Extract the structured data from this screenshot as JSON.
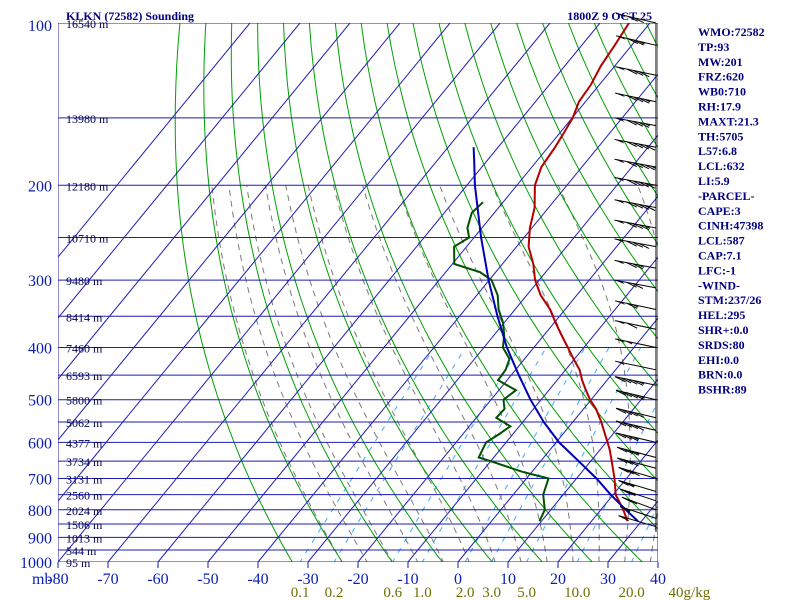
{
  "chart_data": {
    "type": "line",
    "title": "KLKN (72582) Sounding",
    "subtitle": "1800Z  9 OCT 25",
    "xlabel": "",
    "ylabel": "mb",
    "x_axis": {
      "unit_label": "mb",
      "ticks": [
        "-80",
        "-70",
        "-60",
        "-50",
        "-40",
        "-30",
        "-20",
        "-10",
        "0",
        "10",
        "20",
        "30",
        "40"
      ],
      "xlim": [
        -80,
        40
      ]
    },
    "y_axis": {
      "scale": "log",
      "ticks": [
        "100",
        "200",
        "300",
        "400",
        "500",
        "600",
        "700",
        "800",
        "900",
        "1000"
      ],
      "ylim": [
        1000,
        100
      ]
    },
    "mixing_ratio_labels": [
      "0.1",
      "0.2",
      "0.6",
      "1.0",
      "2.0",
      "3.0",
      "5.0",
      "10.0",
      "20.0",
      "40g/kg"
    ],
    "height_labels": [
      {
        "p": 100,
        "label": "16540 m"
      },
      {
        "p": 150,
        "label": "13980 m"
      },
      {
        "p": 200,
        "label": "12180 m"
      },
      {
        "p": 250,
        "label": "10710 m"
      },
      {
        "p": 300,
        "label": "9480 m"
      },
      {
        "p": 350,
        "label": "8414 m"
      },
      {
        "p": 400,
        "label": "7460 m"
      },
      {
        "p": 450,
        "label": "6593 m"
      },
      {
        "p": 500,
        "label": "5800 m"
      },
      {
        "p": 550,
        "label": "5062 m"
      },
      {
        "p": 600,
        "label": "4377 m"
      },
      {
        "p": 650,
        "label": "3734 m"
      },
      {
        "p": 700,
        "label": "3131 m"
      },
      {
        "p": 750,
        "label": "2560 m"
      },
      {
        "p": 800,
        "label": "2024 m"
      },
      {
        "p": 850,
        "label": "1506 m"
      },
      {
        "p": 900,
        "label": "1013 m"
      },
      {
        "p": 950,
        "label": "544 m"
      },
      {
        "p": 1000,
        "label": "95 m"
      }
    ],
    "grid": true,
    "colors": {
      "isobar": "#1e1eb4",
      "isotherm": "#1e1eb4",
      "dry_adiabat": "#00a000",
      "moist_adiabat": "#7a7a7a",
      "mixing_ratio": "#3caaff",
      "temperature": "#b40000",
      "dewpoint": "#005000",
      "parcel": "#0000b4",
      "text": "#000080"
    },
    "series": [
      {
        "name": "Temperature",
        "points": [
          [
            840,
            17.2
          ],
          [
            800,
            14.5
          ],
          [
            750,
            10.5
          ],
          [
            700,
            7.6
          ],
          [
            650,
            4.2
          ],
          [
            620,
            2.0
          ],
          [
            600,
            0.3
          ],
          [
            580,
            -1.5
          ],
          [
            550,
            -4.3
          ],
          [
            520,
            -7.5
          ],
          [
            500,
            -10.2
          ],
          [
            480,
            -12.6
          ],
          [
            460,
            -15.0
          ],
          [
            440,
            -17.2
          ],
          [
            420,
            -20.2
          ],
          [
            400,
            -23.2
          ],
          [
            380,
            -26.4
          ],
          [
            360,
            -29.7
          ],
          [
            340,
            -33.0
          ],
          [
            320,
            -37.2
          ],
          [
            300,
            -40.8
          ],
          [
            280,
            -43.8
          ],
          [
            260,
            -47.6
          ],
          [
            240,
            -50.4
          ],
          [
            220,
            -52.8
          ],
          [
            200,
            -56.4
          ],
          [
            185,
            -58.1
          ],
          [
            170,
            -58.6
          ],
          [
            160,
            -59.2
          ],
          [
            150,
            -59.9
          ],
          [
            140,
            -61.3
          ],
          [
            130,
            -61.7
          ],
          [
            120,
            -62.8
          ],
          [
            110,
            -63.4
          ],
          [
            100,
            -64.2
          ]
        ]
      },
      {
        "name": "Dewpoint",
        "points": [
          [
            840,
            -0.4
          ],
          [
            800,
            -1.2
          ],
          [
            750,
            -4.0
          ],
          [
            700,
            -5.6
          ],
          [
            680,
            -12.0
          ],
          [
            650,
            -20.0
          ],
          [
            640,
            -23.0
          ],
          [
            620,
            -23.5
          ],
          [
            600,
            -24.0
          ],
          [
            580,
            -22.8
          ],
          [
            560,
            -21.8
          ],
          [
            540,
            -26.0
          ],
          [
            520,
            -25.8
          ],
          [
            500,
            -27.5
          ],
          [
            480,
            -26.6
          ],
          [
            460,
            -31.8
          ],
          [
            440,
            -32.0
          ],
          [
            420,
            -33.0
          ],
          [
            400,
            -36.2
          ],
          [
            380,
            -37.9
          ],
          [
            360,
            -40.2
          ],
          [
            340,
            -43.3
          ],
          [
            320,
            -45.8
          ],
          [
            300,
            -49.5
          ],
          [
            290,
            -53.1
          ],
          [
            280,
            -59.6
          ],
          [
            260,
            -62.5
          ],
          [
            250,
            -61.0
          ],
          [
            240,
            -62.9
          ],
          [
            225,
            -64.5
          ],
          [
            215,
            -64.0
          ]
        ]
      },
      {
        "name": "Parcel",
        "points": [
          [
            840,
            19.3
          ],
          [
            800,
            15.0
          ],
          [
            750,
            9.5
          ],
          [
            700,
            4.0
          ],
          [
            650,
            -2.4
          ],
          [
            600,
            -9.4
          ],
          [
            550,
            -15.8
          ],
          [
            500,
            -22.1
          ],
          [
            450,
            -28.5
          ],
          [
            400,
            -35.4
          ],
          [
            350,
            -42.4
          ],
          [
            300,
            -50.1
          ],
          [
            250,
            -58.6
          ],
          [
            200,
            -68.4
          ],
          [
            180,
            -72.6
          ],
          [
            170,
            -74.9
          ]
        ]
      }
    ]
  },
  "stats": [
    "WMO:72582",
    "TP:93",
    "MW:201",
    "FRZ:620",
    "WB0:710",
    "RH:17.9",
    "MAXT:21.3",
    "TH:5705",
    "L57:6.8",
    "LCL:632",
    "LI:5.9",
    "-PARCEL-",
    "CAPE:3",
    "CINH:47398",
    "LCL:587",
    "CAP:7.1",
    "LFC:-1",
    "-WIND-",
    "STM:237/26",
    "HEL:295",
    "SHR+:0.0",
    "SRDS:80",
    "EHI:0.0",
    "BRN:0.0",
    "BSHR:89"
  ],
  "wind_profile": [
    {
      "p": 860,
      "dir": 240,
      "spd": 10
    },
    {
      "p": 830,
      "dir": 235,
      "spd": 15
    },
    {
      "p": 800,
      "dir": 230,
      "spd": 20
    },
    {
      "p": 770,
      "dir": 235,
      "spd": 25
    },
    {
      "p": 740,
      "dir": 240,
      "spd": 25
    },
    {
      "p": 700,
      "dir": 240,
      "spd": 30
    },
    {
      "p": 670,
      "dir": 245,
      "spd": 30
    },
    {
      "p": 640,
      "dir": 245,
      "spd": 35
    },
    {
      "p": 600,
      "dir": 250,
      "spd": 35
    },
    {
      "p": 570,
      "dir": 250,
      "spd": 40
    },
    {
      "p": 540,
      "dir": 250,
      "spd": 40
    },
    {
      "p": 500,
      "dir": 250,
      "spd": 45
    },
    {
      "p": 470,
      "dir": 255,
      "spd": 45
    },
    {
      "p": 440,
      "dir": 255,
      "spd": 50
    },
    {
      "p": 400,
      "dir": 255,
      "spd": 55
    },
    {
      "p": 370,
      "dir": 255,
      "spd": 60
    },
    {
      "p": 340,
      "dir": 255,
      "spd": 65
    },
    {
      "p": 310,
      "dir": 260,
      "spd": 70
    },
    {
      "p": 285,
      "dir": 260,
      "spd": 75
    },
    {
      "p": 260,
      "dir": 260,
      "spd": 80
    },
    {
      "p": 240,
      "dir": 260,
      "spd": 85
    },
    {
      "p": 220,
      "dir": 260,
      "spd": 90
    },
    {
      "p": 200,
      "dir": 260,
      "spd": 90
    },
    {
      "p": 185,
      "dir": 260,
      "spd": 95
    },
    {
      "p": 170,
      "dir": 260,
      "spd": 90
    },
    {
      "p": 155,
      "dir": 260,
      "spd": 85
    },
    {
      "p": 140,
      "dir": 255,
      "spd": 85
    },
    {
      "p": 125,
      "dir": 255,
      "spd": 80
    },
    {
      "p": 110,
      "dir": 250,
      "spd": 75
    },
    {
      "p": 100,
      "dir": 250,
      "spd": 70
    }
  ]
}
